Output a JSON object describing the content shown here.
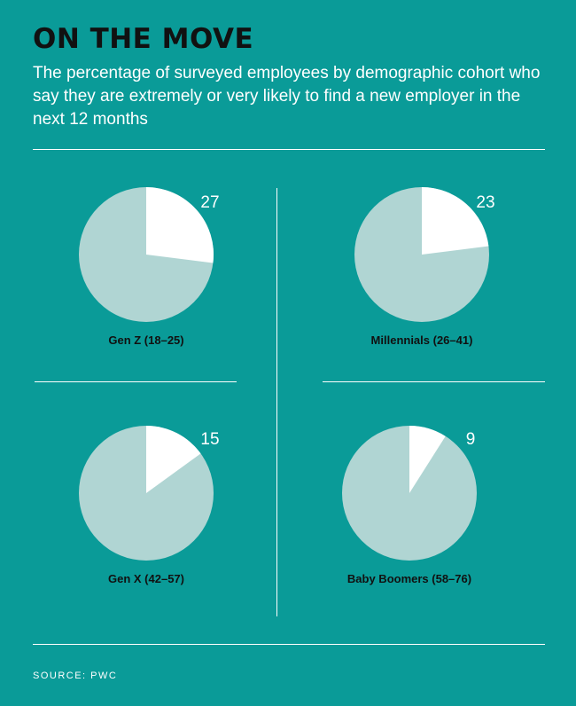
{
  "header": {
    "title": "ON THE MOVE",
    "subtitle": "The percentage of surveyed employees by demographic cohort who say they are extremely or very likely to find a new employer in the next 12 months"
  },
  "footer": {
    "source": "SOURCE: PWC"
  },
  "colors": {
    "background": "#0a9b98",
    "slice": "#ffffff",
    "remainder": "#b0d5d3",
    "title": "#111111",
    "label": "#111111"
  },
  "chart_data": [
    {
      "type": "pie",
      "label": "Gen Z (18–25)",
      "value": 27,
      "value_label": "27",
      "total": 100
    },
    {
      "type": "pie",
      "label": "Millennials (26–41)",
      "value": 23,
      "value_label": "23",
      "total": 100
    },
    {
      "type": "pie",
      "label": "Gen X (42–57)",
      "value": 15,
      "value_label": "15",
      "total": 100
    },
    {
      "type": "pie",
      "label": "Baby Boomers (58–76)",
      "value": 9,
      "value_label": "9",
      "total": 100
    }
  ]
}
